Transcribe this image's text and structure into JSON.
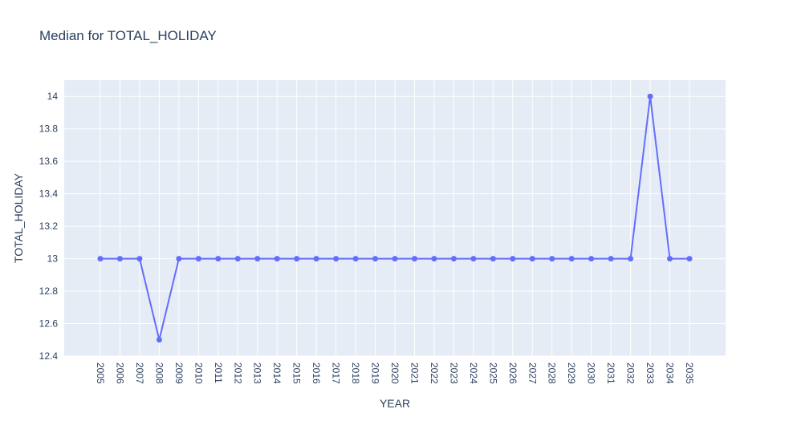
{
  "chart_data": {
    "type": "line",
    "title": "Median for TOTAL_HOLIDAY",
    "xlabel": "YEAR",
    "ylabel": "TOTAL_HOLIDAY",
    "x": [
      "2005",
      "2006",
      "2007",
      "2008",
      "2009",
      "2010",
      "2011",
      "2012",
      "2013",
      "2014",
      "2015",
      "2016",
      "2017",
      "2018",
      "2019",
      "2020",
      "2021",
      "2022",
      "2023",
      "2024",
      "2025",
      "2026",
      "2027",
      "2028",
      "2029",
      "2030",
      "2031",
      "2032",
      "2033",
      "2034",
      "2035"
    ],
    "series": [
      {
        "values": [
          13,
          13,
          13,
          12.5,
          13,
          13,
          13,
          13,
          13,
          13,
          13,
          13,
          13,
          13,
          13,
          13,
          13,
          13,
          13,
          13,
          13,
          13,
          13,
          13,
          13,
          13,
          13,
          13,
          14,
          13,
          13
        ],
        "color": "#636efa",
        "mode": "lines+markers"
      }
    ],
    "ylim": [
      12.4,
      14.1
    ],
    "yticks": [
      "12.4",
      "12.6",
      "12.8",
      "13",
      "13.2",
      "13.4",
      "13.6",
      "13.8",
      "14"
    ],
    "ytick_values": [
      12.4,
      12.6,
      12.8,
      13,
      13.2,
      13.4,
      13.6,
      13.8,
      14
    ],
    "grid": true,
    "legend": "none",
    "plot_background": "#e5ecf6",
    "grid_color": "#ffffff",
    "text_color": "#2a3f5f"
  }
}
